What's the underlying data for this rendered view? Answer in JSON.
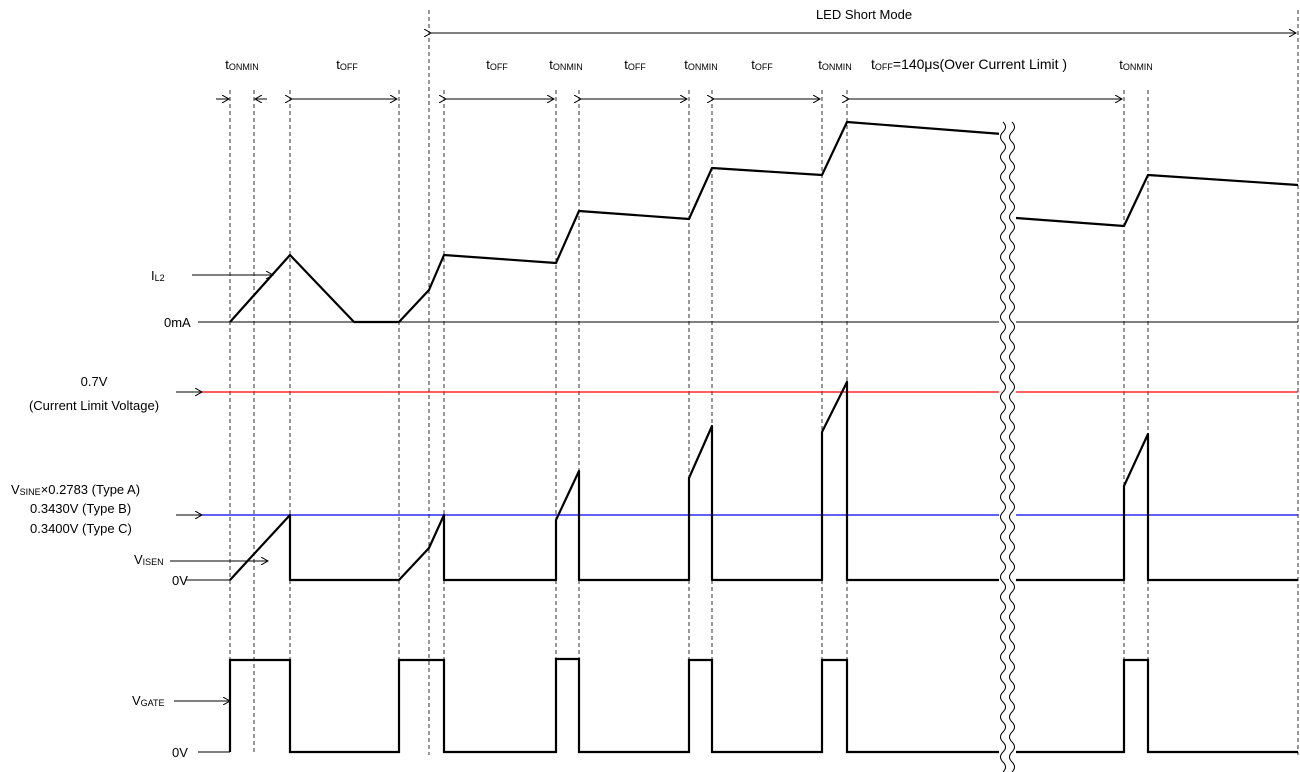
{
  "mode": {
    "title": "LED Short Mode"
  },
  "timing": {
    "t": "t",
    "onmin": "ONMIN",
    "off": "OFF",
    "long_off_value": "=140μs(Over Current Limit )"
  },
  "signals": {
    "il2": {
      "main": "I",
      "sub": "L2"
    },
    "visen": {
      "main": "V",
      "sub": "ISEN"
    },
    "vgate": {
      "main": "V",
      "sub": "GATE"
    },
    "vsine_prefix": {
      "main": "V",
      "sub": "SINE"
    }
  },
  "levels": {
    "zero_ma": "0mA",
    "zero_v_isen": "0V",
    "zero_v_gate": "0V",
    "current_limit": "0.7V",
    "current_limit_desc": "(Current Limit Voltage)",
    "type_a_value": "×0.2783 (Type A)",
    "type_b": "0.3430V (Type B)",
    "type_c": "0.3400V (Type C)"
  },
  "colors": {
    "current_limit_line": "#ff0000",
    "threshold_line": "#0000ff",
    "trace": "#000000"
  }
}
